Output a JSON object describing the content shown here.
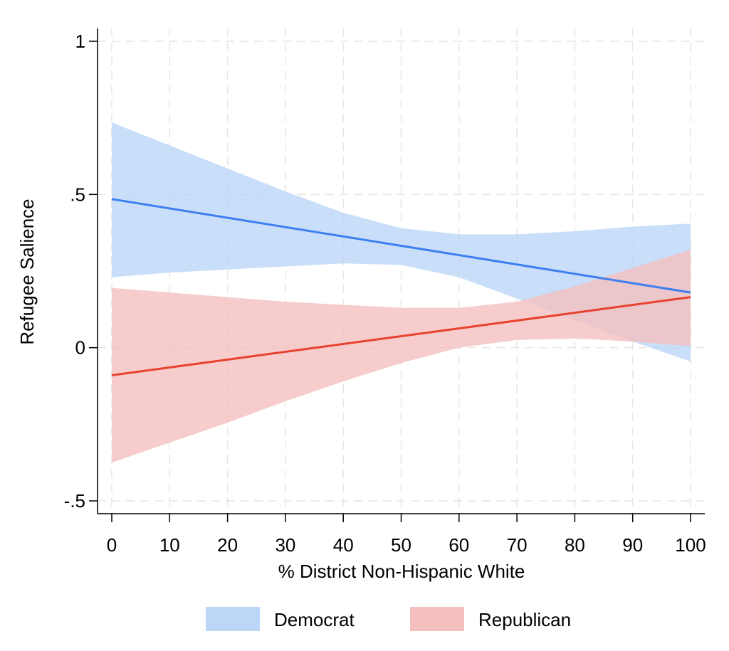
{
  "chart_data": {
    "type": "line",
    "title": "",
    "xlabel": "% District Non-Hispanic White",
    "ylabel": "Refugee Salience",
    "xlim": [
      0,
      100
    ],
    "ylim": [
      -0.5,
      1
    ],
    "x_ticks": [
      {
        "value": 0,
        "label": "0"
      },
      {
        "value": 10,
        "label": "10"
      },
      {
        "value": 20,
        "label": "20"
      },
      {
        "value": 30,
        "label": "30"
      },
      {
        "value": 40,
        "label": "40"
      },
      {
        "value": 50,
        "label": "50"
      },
      {
        "value": 60,
        "label": "60"
      },
      {
        "value": 70,
        "label": "70"
      },
      {
        "value": 80,
        "label": "80"
      },
      {
        "value": 90,
        "label": "90"
      },
      {
        "value": 100,
        "label": "100"
      }
    ],
    "y_ticks": [
      {
        "value": 1,
        "label": "1"
      },
      {
        "value": 0.5,
        "label": ".5"
      },
      {
        "value": 0,
        "label": "0"
      },
      {
        "value": -0.5,
        "label": "-.5"
      }
    ],
    "grid": true,
    "legend_position": "bottom",
    "series": [
      {
        "name": "Democrat",
        "line_color": "#3d7fef",
        "band_color": "#bcd6f7",
        "line": [
          [
            0,
            0.485
          ],
          [
            100,
            0.18
          ]
        ],
        "band_upper": [
          [
            0,
            0.735
          ],
          [
            10,
            0.66
          ],
          [
            20,
            0.585
          ],
          [
            30,
            0.51
          ],
          [
            40,
            0.44
          ],
          [
            50,
            0.39
          ],
          [
            60,
            0.37
          ],
          [
            70,
            0.37
          ],
          [
            80,
            0.38
          ],
          [
            90,
            0.395
          ],
          [
            100,
            0.405
          ]
        ],
        "band_lower": [
          [
            0,
            0.23
          ],
          [
            10,
            0.245
          ],
          [
            20,
            0.255
          ],
          [
            30,
            0.265
          ],
          [
            40,
            0.275
          ],
          [
            50,
            0.27
          ],
          [
            60,
            0.23
          ],
          [
            70,
            0.16
          ],
          [
            80,
            0.09
          ],
          [
            90,
            0.02
          ],
          [
            100,
            -0.045
          ]
        ]
      },
      {
        "name": "Republican",
        "line_color": "#e8412f",
        "band_color": "#f4bfbf",
        "line": [
          [
            0,
            -0.09
          ],
          [
            100,
            0.165
          ]
        ],
        "band_upper": [
          [
            0,
            0.195
          ],
          [
            10,
            0.18
          ],
          [
            20,
            0.165
          ],
          [
            30,
            0.15
          ],
          [
            40,
            0.14
          ],
          [
            50,
            0.13
          ],
          [
            60,
            0.13
          ],
          [
            70,
            0.15
          ],
          [
            80,
            0.2
          ],
          [
            90,
            0.26
          ],
          [
            100,
            0.32
          ]
        ],
        "band_lower": [
          [
            0,
            -0.375
          ],
          [
            10,
            -0.31
          ],
          [
            20,
            -0.245
          ],
          [
            30,
            -0.175
          ],
          [
            40,
            -0.11
          ],
          [
            50,
            -0.05
          ],
          [
            60,
            0.0
          ],
          [
            70,
            0.025
          ],
          [
            80,
            0.03
          ],
          [
            90,
            0.02
          ],
          [
            100,
            0.005
          ]
        ]
      }
    ]
  }
}
